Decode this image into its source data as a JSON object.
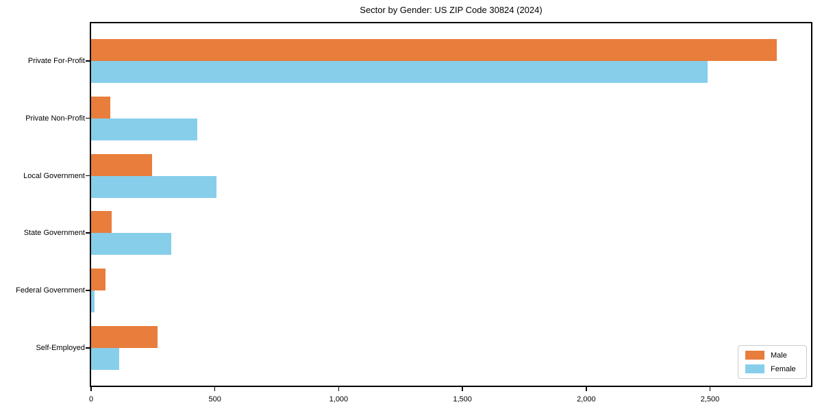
{
  "title": "Sector by Gender: US ZIP Code 30824 (2024)",
  "chart_data": {
    "type": "bar",
    "orientation": "horizontal",
    "title": "Sector by Gender: US ZIP Code 30824 (2024)",
    "categories": [
      "Private For-Profit",
      "Private Non-Profit",
      "Local Government",
      "State Government",
      "Federal Government",
      "Self-Employed"
    ],
    "series": [
      {
        "name": "Male",
        "color": "#e87d3c",
        "values": [
          2770,
          78,
          245,
          82,
          57,
          268
        ]
      },
      {
        "name": "Female",
        "color": "#87ceeb",
        "values": [
          2490,
          430,
          505,
          324,
          14,
          114
        ]
      }
    ],
    "xlabel": "",
    "ylabel": "",
    "xlim": [
      0,
      2908
    ],
    "xticks": [
      0,
      500,
      1000,
      1500,
      2000,
      2500
    ],
    "xtick_labels": [
      "0",
      "500",
      "1,000",
      "1,500",
      "2,000",
      "2,500"
    ],
    "grid": false,
    "legend_position": "lower right",
    "legend_entries": [
      "Male",
      "Female"
    ]
  }
}
